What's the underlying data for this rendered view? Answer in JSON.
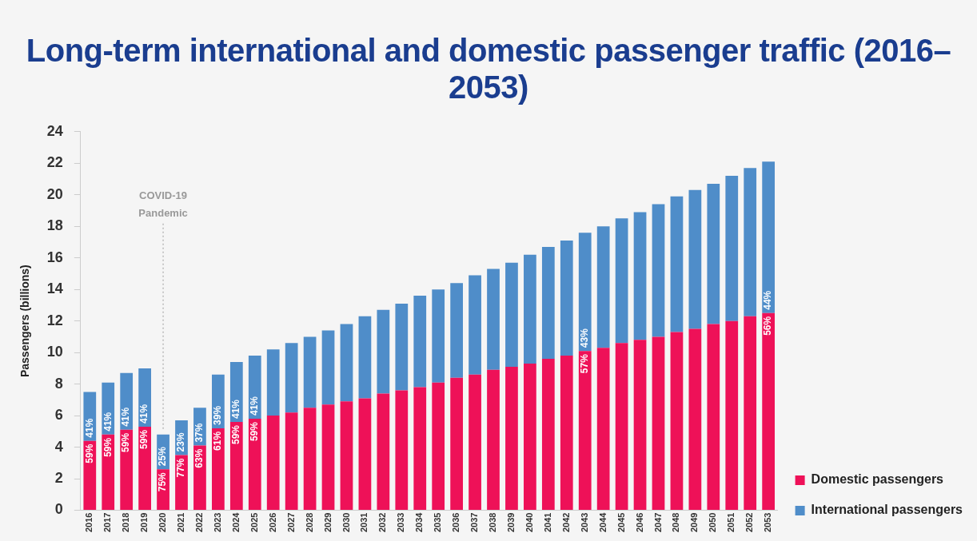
{
  "chart_data": {
    "type": "bar",
    "title": "Long-term international and domestic passenger traffic (2016–2053)",
    "ylabel": "Passengers (billions)",
    "categories": [
      "2016",
      "2017",
      "2018",
      "2019",
      "2020",
      "2021",
      "2022",
      "2023",
      "2024",
      "2025",
      "2026",
      "2027",
      "2028",
      "2029",
      "2030",
      "2031",
      "2032",
      "2033",
      "2034",
      "2035",
      "2036",
      "2037",
      "2038",
      "2039",
      "2040",
      "2041",
      "2042",
      "2043",
      "2044",
      "2045",
      "2046",
      "2047",
      "2048",
      "2049",
      "2050",
      "2051",
      "2052",
      "2053"
    ],
    "stacked": true,
    "series": [
      {
        "name": "Domestic passengers",
        "color": "#ee1158",
        "values": [
          4.4,
          4.8,
          5.1,
          5.3,
          2.6,
          3.5,
          4.1,
          5.2,
          5.6,
          5.8,
          6.0,
          6.2,
          6.5,
          6.7,
          6.9,
          7.1,
          7.4,
          7.6,
          7.8,
          8.1,
          8.4,
          8.6,
          8.9,
          9.1,
          9.3,
          9.6,
          9.8,
          10.1,
          10.3,
          10.6,
          10.8,
          11.0,
          11.3,
          11.5,
          11.8,
          12.0,
          12.3,
          12.5
        ]
      },
      {
        "name": "International passengers",
        "color": "#4f8dc9",
        "values": [
          3.1,
          3.3,
          3.6,
          3.7,
          2.2,
          2.2,
          2.4,
          3.4,
          3.8,
          4.0,
          4.2,
          4.4,
          4.5,
          4.7,
          4.9,
          5.2,
          5.3,
          5.5,
          5.8,
          5.9,
          6.0,
          6.3,
          6.4,
          6.6,
          6.9,
          7.1,
          7.3,
          7.5,
          7.7,
          7.9,
          8.1,
          8.4,
          8.6,
          8.8,
          8.9,
          9.2,
          9.4,
          9.6
        ]
      }
    ],
    "annotations": [
      {
        "text": "59%",
        "x": "2016",
        "y": 4.4
      },
      {
        "text": "41%",
        "x": "2016",
        "y": 4.4
      },
      {
        "text": "59%",
        "x": "2017",
        "y": 4.8
      },
      {
        "text": "41%",
        "x": "2017",
        "y": 4.8
      },
      {
        "text": "59%",
        "x": "2018",
        "y": 5.1
      },
      {
        "text": "41%",
        "x": "2018",
        "y": 5.1
      },
      {
        "text": "59%",
        "x": "2019",
        "y": 5.3
      },
      {
        "text": "41%",
        "x": "2019",
        "y": 5.3
      },
      {
        "text": "75%",
        "x": "2020",
        "y": 2.6
      },
      {
        "text": "25%",
        "x": "2020",
        "y": 2.6
      },
      {
        "text": "77%",
        "x": "2021",
        "y": 3.5
      },
      {
        "text": "23%",
        "x": "2021",
        "y": 3.5
      },
      {
        "text": "63%",
        "x": "2022",
        "y": 4.1
      },
      {
        "text": "37%",
        "x": "2022",
        "y": 4.1
      },
      {
        "text": "61%",
        "x": "2023",
        "y": 5.2
      },
      {
        "text": "39%",
        "x": "2023",
        "y": 5.2
      },
      {
        "text": "59%",
        "x": "2024",
        "y": 5.6
      },
      {
        "text": "41%",
        "x": "2024",
        "y": 5.6
      },
      {
        "text": "59%",
        "x": "2025",
        "y": 5.8
      },
      {
        "text": "41%",
        "x": "2025",
        "y": 5.8
      },
      {
        "text": "57%",
        "x": "2043",
        "y": 10.1
      },
      {
        "text": "43%",
        "x": "2043",
        "y": 10.1
      },
      {
        "text": "56%",
        "x": "2053",
        "y": 12.5
      },
      {
        "text": "44%",
        "x": "2053",
        "y": 12.5
      }
    ],
    "ylim": [
      0,
      24
    ],
    "yticks": [
      0,
      2,
      4,
      6,
      8,
      10,
      12,
      14,
      16,
      18,
      20,
      22,
      24
    ],
    "ref_lines": [
      {
        "axis": "x",
        "value": "2020",
        "label": "COVID-19 Pandemic",
        "color": "#aaaaaa",
        "line_style": "dotted"
      }
    ],
    "grid": false,
    "legend": "bottom right"
  }
}
